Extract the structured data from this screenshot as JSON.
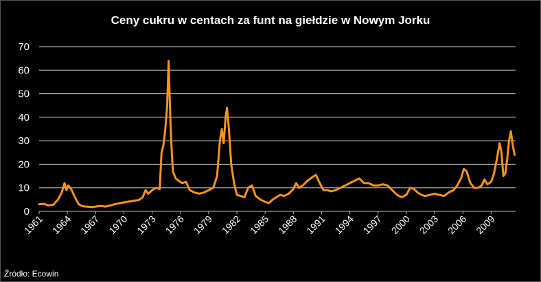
{
  "chart_data": {
    "type": "line",
    "title": "Ceny cukru w centach za funt na giełdzie w Nowym Jorku",
    "xlabel": "",
    "ylabel": "",
    "source": "Źródło: Ecowin",
    "xlim": [
      1961,
      2011.6
    ],
    "ylim": [
      0,
      70
    ],
    "y_ticks": [
      0,
      10,
      20,
      30,
      40,
      50,
      60,
      70
    ],
    "x_ticks": [
      1961,
      1964,
      1967,
      1970,
      1973,
      1976,
      1979,
      1982,
      1985,
      1988,
      1991,
      1994,
      1997,
      2000,
      2003,
      2006,
      2009
    ],
    "grid": "horizontal",
    "legend": "none",
    "line_color": "#F7941D",
    "series": [
      {
        "x": [
          1961.0,
          1961.5,
          1962.0,
          1962.5,
          1963.0,
          1963.4,
          1963.7,
          1963.9,
          1964.1,
          1964.4,
          1964.8,
          1965.2,
          1965.6,
          1966.0,
          1966.6,
          1967.0,
          1967.6,
          1968.0,
          1968.6,
          1969.0,
          1969.6,
          1970.0,
          1970.6,
          1971.0,
          1971.6,
          1972.0,
          1972.3,
          1972.6,
          1973.0,
          1973.4,
          1973.8,
          1974.0,
          1974.2,
          1974.4,
          1974.6,
          1974.75,
          1974.85,
          1974.95,
          1975.05,
          1975.2,
          1975.5,
          1975.8,
          1976.2,
          1976.6,
          1977.0,
          1977.5,
          1978.0,
          1978.5,
          1979.0,
          1979.5,
          1979.9,
          1980.2,
          1980.4,
          1980.6,
          1980.8,
          1980.95,
          1981.15,
          1981.4,
          1981.7,
          1982.0,
          1982.4,
          1982.8,
          1983.2,
          1983.6,
          1984.0,
          1984.5,
          1985.0,
          1985.4,
          1985.8,
          1986.2,
          1986.6,
          1987.0,
          1987.5,
          1988.0,
          1988.3,
          1988.6,
          1989.0,
          1989.5,
          1990.0,
          1990.4,
          1990.8,
          1991.2,
          1991.6,
          1992.0,
          1992.5,
          1993.0,
          1993.5,
          1994.0,
          1994.5,
          1995.0,
          1995.5,
          1996.0,
          1996.5,
          1997.0,
          1997.5,
          1998.0,
          1998.5,
          1999.0,
          1999.5,
          2000.0,
          2000.4,
          2000.8,
          2001.2,
          2001.6,
          2002.0,
          2002.5,
          2003.0,
          2003.5,
          2004.0,
          2004.5,
          2005.0,
          2005.4,
          2005.8,
          2006.1,
          2006.4,
          2006.8,
          2007.2,
          2007.6,
          2008.0,
          2008.3,
          2008.6,
          2009.0,
          2009.3,
          2009.6,
          2009.9,
          2010.1,
          2010.3,
          2010.5,
          2010.7,
          2010.9,
          2011.1,
          2011.3,
          2011.5
        ],
        "values": [
          3.0,
          3.2,
          2.5,
          2.8,
          5.0,
          8.0,
          12.0,
          9.0,
          11.0,
          9.5,
          6.0,
          3.0,
          2.2,
          2.0,
          1.8,
          2.0,
          2.3,
          2.0,
          2.5,
          3.0,
          3.5,
          3.8,
          4.2,
          4.5,
          4.8,
          6.0,
          9.0,
          7.5,
          9.0,
          10.0,
          9.5,
          25.0,
          28.0,
          35.0,
          45.0,
          64.0,
          50.0,
          38.0,
          28.0,
          17.0,
          14.0,
          13.0,
          12.0,
          12.5,
          9.0,
          8.0,
          7.5,
          8.0,
          9.0,
          10.0,
          15.0,
          30.0,
          35.0,
          29.0,
          40.0,
          44.0,
          35.0,
          20.0,
          12.0,
          7.0,
          6.5,
          6.0,
          10.0,
          11.0,
          6.5,
          5.0,
          4.0,
          3.5,
          5.0,
          6.0,
          7.0,
          6.5,
          7.5,
          9.5,
          12.0,
          10.0,
          11.0,
          13.0,
          14.5,
          15.5,
          12.0,
          9.0,
          9.0,
          8.5,
          9.0,
          10.0,
          11.0,
          12.0,
          13.0,
          14.0,
          12.0,
          12.0,
          11.0,
          11.0,
          11.5,
          11.0,
          9.0,
          7.0,
          6.0,
          7.0,
          10.0,
          9.5,
          8.0,
          7.0,
          6.5,
          7.0,
          7.5,
          7.0,
          6.5,
          8.0,
          9.0,
          11.0,
          14.0,
          18.0,
          17.0,
          12.0,
          10.0,
          10.0,
          11.0,
          13.5,
          11.5,
          12.5,
          16.0,
          22.0,
          29.0,
          25.0,
          15.0,
          16.0,
          22.0,
          30.0,
          34.0,
          28.0,
          24.0
        ]
      }
    ]
  }
}
